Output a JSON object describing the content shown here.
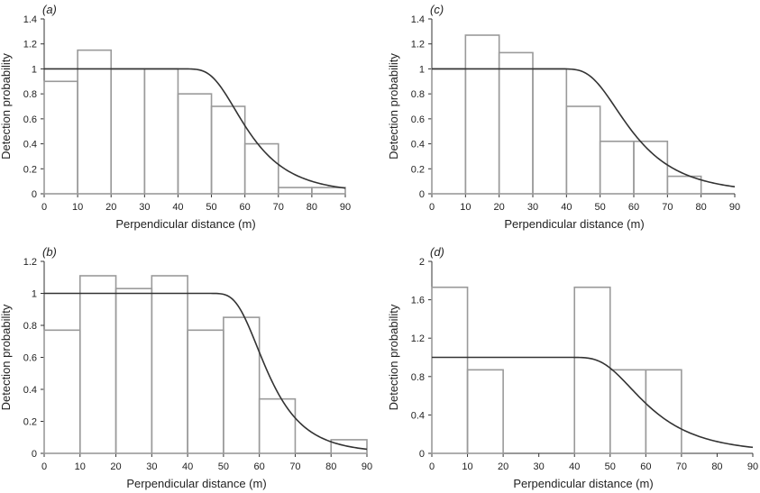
{
  "chart_data": [
    {
      "type": "bar",
      "panel_label": "(a)",
      "xlabel": "Perpendicular distance (m)",
      "ylabel": "Detection probability",
      "xlim": [
        0,
        90
      ],
      "ylim": [
        0,
        1.4
      ],
      "xticks": [
        "0",
        "10",
        "20",
        "30",
        "40",
        "50",
        "60",
        "70",
        "80",
        "90"
      ],
      "yticks": [
        "0",
        "0.2",
        "0.4",
        "0.6",
        "0.8",
        "1",
        "1.2",
        "1.4"
      ],
      "bins": [
        [
          0,
          10
        ],
        [
          10,
          20
        ],
        [
          20,
          30
        ],
        [
          30,
          40
        ],
        [
          40,
          50
        ],
        [
          50,
          60
        ],
        [
          60,
          70
        ],
        [
          70,
          80
        ],
        [
          80,
          90
        ]
      ],
      "values": [
        0.9,
        1.15,
        1.0,
        1.0,
        0.8,
        0.7,
        0.4,
        0.05,
        0.05
      ],
      "curve": {
        "shoulder": 1.0,
        "sigma": 58,
        "b": 7
      }
    },
    {
      "type": "bar",
      "panel_label": "(c)",
      "xlabel": "Perpendicular distance (m)",
      "ylabel": "Detection probability",
      "xlim": [
        0,
        90
      ],
      "ylim": [
        0,
        1.4
      ],
      "xticks": [
        "0",
        "10",
        "20",
        "30",
        "40",
        "50",
        "60",
        "70",
        "80",
        "90"
      ],
      "yticks": [
        "0",
        "0.2",
        "0.4",
        "0.6",
        "0.8",
        "1",
        "1.2",
        "1.4"
      ],
      "bins": [
        [
          0,
          10
        ],
        [
          10,
          20
        ],
        [
          20,
          30
        ],
        [
          30,
          40
        ],
        [
          40,
          50
        ],
        [
          50,
          60
        ],
        [
          60,
          70
        ],
        [
          70,
          80
        ]
      ],
      "values": [
        1.0,
        1.27,
        1.13,
        1.0,
        0.7,
        0.42,
        0.42,
        0.14
      ],
      "curve": {
        "shoulder": 1.0,
        "sigma": 56,
        "b": 6
      }
    },
    {
      "type": "bar",
      "panel_label": "(b)",
      "xlabel": "Perpendicular distance (m)",
      "ylabel": "Detection probability",
      "xlim": [
        0,
        90
      ],
      "ylim": [
        0,
        1.2
      ],
      "xticks": [
        "0",
        "10",
        "20",
        "30",
        "40",
        "50",
        "60",
        "70",
        "80",
        "90"
      ],
      "yticks": [
        "0",
        "0.2",
        "0.4",
        "0.6",
        "0.8",
        "1",
        "1.2"
      ],
      "bins": [
        [
          0,
          10
        ],
        [
          10,
          20
        ],
        [
          20,
          30
        ],
        [
          30,
          40
        ],
        [
          40,
          50
        ],
        [
          50,
          60
        ],
        [
          60,
          70
        ],
        [
          80,
          90
        ]
      ],
      "values": [
        0.77,
        1.11,
        1.03,
        1.11,
        0.77,
        0.85,
        0.34,
        0.085
      ],
      "curve": {
        "shoulder": 1.0,
        "sigma": 60,
        "b": 9
      }
    },
    {
      "type": "bar",
      "panel_label": "(d)",
      "xlabel": "Perpendicular distance (m)",
      "ylabel": "Detection probability",
      "xlim": [
        0,
        90
      ],
      "ylim": [
        0,
        2
      ],
      "xticks": [
        "0",
        "10",
        "20",
        "30",
        "40",
        "50",
        "60",
        "70",
        "80",
        "90"
      ],
      "yticks": [
        "0",
        "0.4",
        "0.8",
        "1.2",
        "1.6",
        "2"
      ],
      "bins": [
        [
          0,
          10
        ],
        [
          10,
          20
        ],
        [
          40,
          50
        ],
        [
          50,
          60
        ],
        [
          60,
          70
        ]
      ],
      "values": [
        1.73,
        0.87,
        1.73,
        0.87,
        0.87
      ],
      "curve": {
        "shoulder": 1.0,
        "sigma": 57,
        "b": 6
      }
    }
  ]
}
